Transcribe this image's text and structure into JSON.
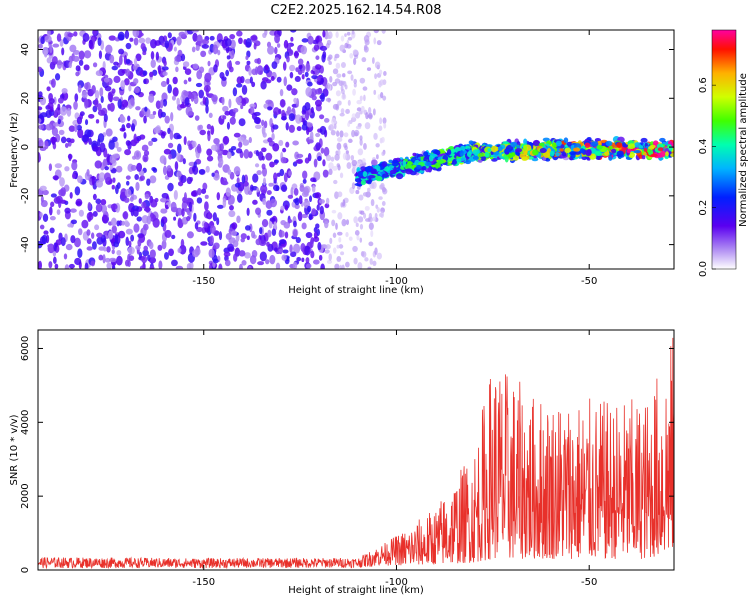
{
  "title": "C2E2.2025.162.14.54.R08",
  "chart_data": [
    {
      "type": "heatmap",
      "xlabel": "Height of straight line (km)",
      "ylabel": "Frequency (Hz)",
      "xlim": [
        -193,
        -28
      ],
      "ylim": [
        -50,
        48
      ],
      "x_ticks": [
        -150,
        -100,
        -50
      ],
      "y_ticks": [
        -40,
        -20,
        0,
        20,
        40
      ],
      "colorbar": {
        "label": "Normalized spectral amplitude",
        "range": [
          0,
          0.78
        ],
        "ticks": [
          0,
          0.2,
          0.4,
          0.6
        ]
      },
      "regions": [
        {
          "x_range": [
            -193,
            -118
          ],
          "y_range": [
            -50,
            48
          ],
          "amplitude": 0.08,
          "note_visible": false
        },
        {
          "x_range": [
            -118,
            -103
          ],
          "y_range": [
            -50,
            48
          ],
          "amplitude": 0.03
        },
        {
          "x_range": [
            -103,
            -28
          ],
          "track_center_hz": [
            [
              -110,
              -12
            ],
            [
              -95,
              -7
            ],
            [
              -80,
              -2
            ],
            [
              -60,
              -1
            ],
            [
              -45,
              -1
            ],
            [
              -28,
              -1
            ]
          ],
          "track_halfwidth_hz": 5,
          "amplitude": [
            0.15,
            0.78
          ]
        }
      ]
    },
    {
      "type": "line",
      "xlabel": "Height of straight line (km)",
      "ylabel": "SNR (10 * v/v)",
      "xlim": [
        -193,
        -28
      ],
      "ylim": [
        0,
        6500
      ],
      "x_ticks": [
        -150,
        -100,
        -50
      ],
      "y_ticks": [
        0,
        2000,
        4000,
        6000
      ],
      "series": [
        {
          "color": "#e8302a",
          "envelope": [
            {
              "x": -193,
              "y_low": 50,
              "y_high": 350
            },
            {
              "x": -150,
              "y_low": 50,
              "y_high": 320
            },
            {
              "x": -110,
              "y_low": 60,
              "y_high": 330
            },
            {
              "x": -102,
              "y_low": 120,
              "y_high": 800
            },
            {
              "x": -90,
              "y_low": 150,
              "y_high": 1700
            },
            {
              "x": -80,
              "y_low": 200,
              "y_high": 3300
            },
            {
              "x": -75,
              "y_low": 300,
              "y_high": 5800
            },
            {
              "x": -65,
              "y_low": 300,
              "y_high": 4800
            },
            {
              "x": -55,
              "y_low": 300,
              "y_high": 4700
            },
            {
              "x": -45,
              "y_low": 300,
              "y_high": 4600
            },
            {
              "x": -35,
              "y_low": 300,
              "y_high": 4700
            },
            {
              "x": -28,
              "y_low": 500,
              "y_high": 6500
            }
          ]
        }
      ]
    }
  ]
}
